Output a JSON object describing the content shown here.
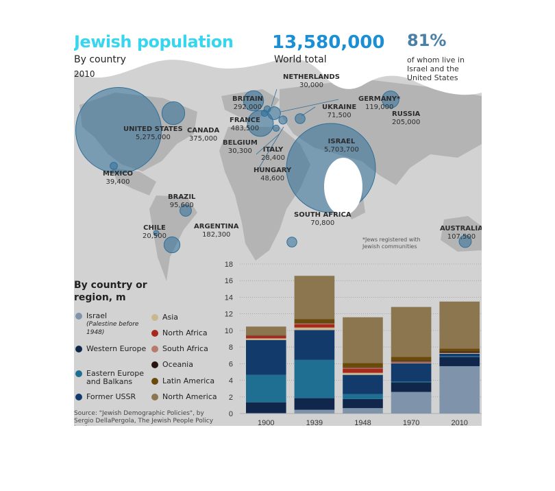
{
  "header": {
    "title": "Jewish population",
    "subtitle": "By country",
    "year": "2010",
    "world_total_value": "13,580,000",
    "world_total_label": "World total",
    "share_value": "81%",
    "share_label": "of whom live in Israel and the United States"
  },
  "map": {
    "countries": [
      {
        "name": "UNITED STATES",
        "value": "5,275,000",
        "pop": 5275000
      },
      {
        "name": "CANADA",
        "value": "375,000",
        "pop": 375000
      },
      {
        "name": "MEXICO",
        "value": "39,400",
        "pop": 39400
      },
      {
        "name": "BRAZIL",
        "value": "95,600",
        "pop": 95600
      },
      {
        "name": "CHILE",
        "value": "20,500",
        "pop": 20500
      },
      {
        "name": "ARGENTINA",
        "value": "182,300",
        "pop": 182300
      },
      {
        "name": "BRITAIN",
        "value": "292,000",
        "pop": 292000
      },
      {
        "name": "FRANCE",
        "value": "483,500",
        "pop": 483500
      },
      {
        "name": "BELGIUM",
        "value": "30,300",
        "pop": 30300
      },
      {
        "name": "NETHERLANDS",
        "value": "30,000",
        "pop": 30000
      },
      {
        "name": "GERMANY*",
        "value": "119,000",
        "pop": 119000
      },
      {
        "name": "UKRAINE",
        "value": "71,500",
        "pop": 71500
      },
      {
        "name": "ITALY",
        "value": "28,400",
        "pop": 28400
      },
      {
        "name": "HUNGARY",
        "value": "48,600",
        "pop": 48600
      },
      {
        "name": "ISRAEL",
        "value": "5,703,700",
        "pop": 5703700
      },
      {
        "name": "RUSSIA",
        "value": "205,000",
        "pop": 205000
      },
      {
        "name": "SOUTH AFRICA",
        "value": "70,800",
        "pop": 70800
      },
      {
        "name": "AUSTRALIA",
        "value": "107,500",
        "pop": 107500
      }
    ],
    "footnote": "*Jews registered with Jewish communities"
  },
  "legend": {
    "title": "By country or region, m",
    "items": [
      {
        "label": "Israel",
        "note": "(Palestine before 1948)",
        "color": "#8b9ab0"
      },
      {
        "label": "Western Europe",
        "color": "#10264a"
      },
      {
        "label": "Eastern Europe and Balkans",
        "color": "#1f6f93"
      },
      {
        "label": "Former USSR",
        "color": "#123b6b"
      },
      {
        "label": "Asia",
        "color": "#c9b88f"
      },
      {
        "label": "North Africa",
        "color": "#a8281c"
      },
      {
        "label": "South Africa",
        "color": "#b87a6a"
      },
      {
        "label": "Oceania",
        "color": "#2a1410"
      },
      {
        "label": "Latin America",
        "color": "#6a4a0a"
      },
      {
        "label": "North America",
        "color": "#8c7650"
      }
    ]
  },
  "source": "Source: \"Jewish Demographic Policies\", by Sergio DellaPergola, The Jewish People Policy Institute",
  "chart_data": {
    "type": "bar",
    "stacked": true,
    "categories": [
      "1900",
      "1939",
      "1948",
      "1970",
      "2010"
    ],
    "ylim": [
      0,
      18
    ],
    "yticks": [
      "0",
      "2",
      "4",
      "6",
      "8",
      "10",
      "12",
      "14",
      "16",
      "18"
    ],
    "series": [
      {
        "name": "Israel",
        "color": "#7f93ab",
        "values": [
          0.05,
          0.45,
          0.65,
          2.6,
          5.7
        ]
      },
      {
        "name": "Western Europe",
        "color": "#10264a",
        "values": [
          1.3,
          1.4,
          1.1,
          1.15,
          1.1
        ]
      },
      {
        "name": "Eastern Europe and Balkans",
        "color": "#1f6f93",
        "values": [
          3.3,
          4.6,
          0.6,
          0.1,
          0.1
        ]
      },
      {
        "name": "Former USSR",
        "color": "#123b6b",
        "values": [
          4.2,
          3.6,
          2.3,
          2.2,
          0.3
        ]
      },
      {
        "name": "Asia",
        "color": "#c9b88f",
        "values": [
          0.2,
          0.3,
          0.25,
          0.05,
          0.05
        ]
      },
      {
        "name": "North Africa",
        "color": "#a8281c",
        "values": [
          0.3,
          0.4,
          0.5,
          0.05,
          0.0
        ]
      },
      {
        "name": "South Africa",
        "color": "#b87a6a",
        "values": [
          0.05,
          0.1,
          0.1,
          0.1,
          0.07
        ]
      },
      {
        "name": "Oceania",
        "color": "#2a1410",
        "values": [
          0.02,
          0.03,
          0.04,
          0.08,
          0.11
        ]
      },
      {
        "name": "Latin America",
        "color": "#6a4a0a",
        "values": [
          0.05,
          0.5,
          0.55,
          0.5,
          0.4
        ]
      },
      {
        "name": "North America",
        "color": "#8c7650",
        "values": [
          1.0,
          5.2,
          5.5,
          6.0,
          5.65
        ]
      }
    ]
  }
}
